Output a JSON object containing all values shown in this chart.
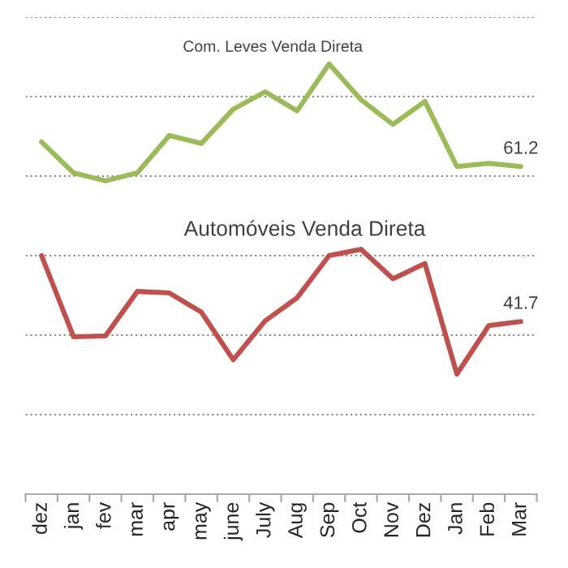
{
  "chart_data": {
    "type": "line",
    "categories": [
      "dez",
      "jan",
      "fev",
      "mar",
      "apr",
      "may",
      "june",
      "July",
      "Aug",
      "Sep",
      "Oct",
      "Nov",
      "Dez",
      "Jan",
      "Feb",
      "Mar"
    ],
    "series": [
      {
        "name": "Com. Leves Venda Direta",
        "color": "#9bbb59",
        "values": [
          64.3,
          60.4,
          59.4,
          60.4,
          65.1,
          64.1,
          68.4,
          70.6,
          68.2,
          74.1,
          69.6,
          66.5,
          69.4,
          61.2,
          61.6,
          61.2
        ],
        "value_labels": [
          null,
          null,
          null,
          null,
          null,
          null,
          null,
          null,
          null,
          null,
          null,
          null,
          null,
          null,
          null,
          "61.2"
        ]
      },
      {
        "name": "Automóveis Venda Direta",
        "color": "#c0504d",
        "values": [
          50.0,
          39.8,
          39.9,
          45.5,
          45.3,
          42.9,
          36.9,
          41.8,
          44.7,
          50.0,
          50.8,
          47.1,
          49.0,
          35.1,
          41.2,
          41.7
        ],
        "value_labels": [
          null,
          null,
          null,
          null,
          null,
          null,
          null,
          null,
          null,
          null,
          null,
          null,
          null,
          null,
          null,
          "41.7"
        ]
      }
    ],
    "ylim": [
      20,
      80
    ],
    "yticks": [
      {
        "value": 20,
        "label": null
      },
      {
        "value": 30,
        "label": null
      },
      {
        "value": 40,
        "label": null
      },
      {
        "value": 50,
        "label": null
      },
      {
        "value": 60,
        "label": null
      },
      {
        "value": 70,
        "label": null
      },
      {
        "value": 80,
        "label": null
      }
    ],
    "tick_labels": "x",
    "grid": "y",
    "legend": false,
    "marker": "none",
    "line_style": "solid"
  }
}
